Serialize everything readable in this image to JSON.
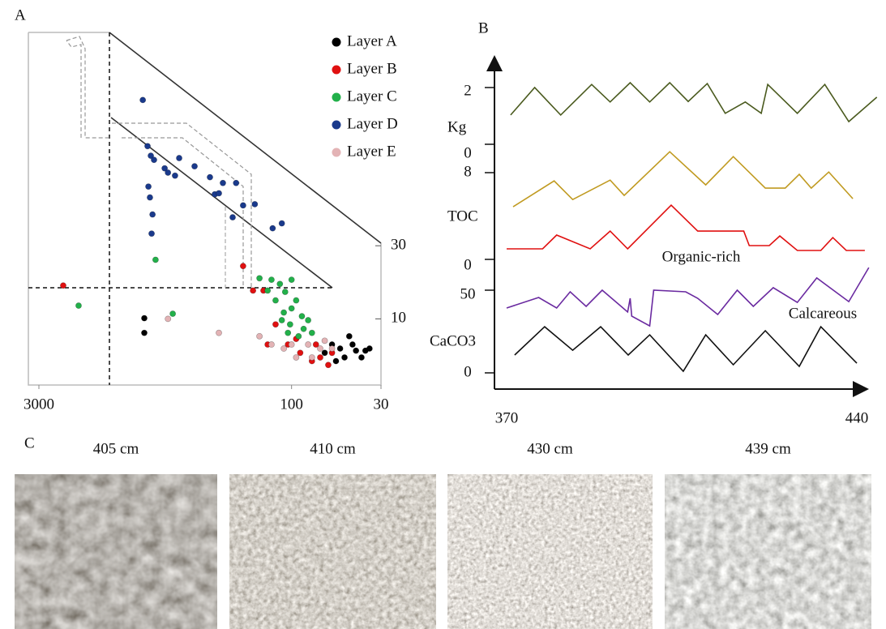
{
  "panel_labels": [
    "A",
    "B",
    "C"
  ],
  "chart_data": [
    {
      "type": "scatter",
      "xscale": "log",
      "yscale": "log",
      "xlim": [
        3000,
        30
      ],
      "ylim": [
        3.7,
        740
      ],
      "xticks": [
        3000,
        100,
        30
      ],
      "yticks": [
        10,
        30
      ],
      "legend": "upper right",
      "series": [
        {
          "name": "Layer A",
          "color": "#000000",
          "x": [
            726,
            726,
            58,
            52,
            46,
            42,
            37,
            49,
            39,
            55,
            44,
            64,
            35
          ],
          "y": [
            10.1,
            8.1,
            6.8,
            6.4,
            7.7,
            6.2,
            6.2,
            5.6,
            5.6,
            5.3,
            6.8,
            6.0,
            6.4
          ]
        },
        {
          "name": "Layer B",
          "color": "#e01010",
          "x": [
            2163,
            192,
            168,
            146,
            124,
            105,
            89,
            76,
            68,
            61,
            58,
            138,
            94,
            72
          ],
          "y": [
            16.5,
            22.1,
            15.3,
            15.3,
            9.2,
            6.8,
            6.0,
            5.3,
            5.6,
            5.0,
            6.0,
            6.8,
            7.4,
            6.8
          ]
        },
        {
          "name": "Layer C",
          "color": "#22b04a",
          "x": [
            154,
            131,
            117,
            100,
            109,
            94,
            124,
            111,
            100,
            87,
            102,
            85,
            76,
            91,
            114,
            80,
            138,
            105,
            624,
            1758,
            495
          ],
          "y": [
            18.4,
            18.0,
            16.9,
            18.0,
            15.0,
            13.2,
            13.2,
            11.0,
            11.7,
            10.4,
            9.2,
            8.6,
            8.1,
            7.7,
            9.8,
            9.8,
            15.3,
            8.1,
            24.3,
            12.2,
            10.8
          ]
        },
        {
          "name": "Layer D",
          "color": "#1a3a8c",
          "x": [
            741,
            695,
            665,
            637,
            552,
            528,
            480,
            454,
            687,
            673,
            650,
            658,
            300,
            281,
            266,
            252,
            211,
            192,
            221,
            164,
            129,
            114,
            369
          ],
          "y": [
            268,
            134,
            116,
            109,
            96,
            90,
            86,
            112,
            73,
            62,
            48,
            36,
            84,
            65,
            66,
            77,
            77,
            55,
            46,
            56,
            39,
            42,
            99
          ]
        },
        {
          "name": "Layer E",
          "color": "#e3b3b5",
          "x": [
            528,
            266,
            154,
            131,
            111,
            94,
            80,
            68,
            58,
            64,
            76,
            100
          ],
          "y": [
            10.0,
            8.1,
            7.7,
            6.8,
            6.4,
            5.6,
            6.8,
            6.4,
            6.4,
            7.2,
            5.6,
            6.8
          ]
        }
      ]
    },
    {
      "type": "line",
      "xlim": [
        370,
        440
      ],
      "xticks": [
        370,
        440
      ],
      "axes": [
        {
          "label": "Kg",
          "ylim": [
            0,
            2
          ],
          "yticks": [
            2,
            0
          ]
        },
        {
          "label": "TOC",
          "ylim": [
            0,
            8
          ],
          "yticks": [
            8,
            0
          ]
        },
        {
          "label": "CaCO3",
          "ylim": [
            0,
            50
          ],
          "yticks": [
            50,
            0
          ]
        }
      ],
      "annotations": [
        "Organic-rich",
        "Calcareous"
      ],
      "series": [
        {
          "color": "#4a5a1e",
          "axis": 0,
          "x": [
            370.8,
            375.6,
            380.8,
            387.0,
            390.7,
            394.7,
            398.6,
            402.6,
            406.3,
            410.1,
            413.7,
            417.7,
            420.9,
            422.2,
            428.1,
            433.6,
            438.4,
            444.0
          ],
          "values": [
            1.03,
            2.0,
            1.03,
            2.11,
            1.49,
            2.17,
            1.49,
            2.17,
            1.51,
            2.14,
            1.09,
            1.49,
            1.09,
            2.11,
            1.09,
            2.11,
            0.8,
            1.66
          ]
        },
        {
          "color": "#c09a20",
          "axis": 1,
          "x": [
            371.3,
            379.5,
            383.2,
            390.7,
            393.5,
            402.6,
            409.8,
            415.3,
            421.7,
            425.7,
            428.5,
            430.9,
            434.4,
            439.2
          ],
          "values": [
            4.85,
            7.24,
            5.52,
            7.31,
            5.9,
            9.93,
            6.87,
            9.48,
            6.57,
            6.57,
            7.84,
            6.57,
            8.06,
            5.6
          ]
        },
        {
          "color": "#e01010",
          "axis": 1,
          "x": [
            370,
            377.2,
            380.0,
            386.7,
            390.7,
            394.2,
            402.9,
            408.2,
            417.4,
            418.5,
            422.5,
            424.6,
            428.1,
            432.8,
            435.2,
            437.9,
            441.6
          ],
          "values": [
            0.97,
            0.97,
            2.24,
            0.97,
            2.61,
            0.97,
            5.0,
            2.61,
            2.61,
            1.27,
            1.27,
            2.16,
            0.82,
            0.82,
            2.01,
            0.82,
            0.82
          ]
        },
        {
          "color": "#6a2aa0",
          "axis": 2,
          "x": [
            370,
            376.4,
            380.0,
            382.7,
            385.9,
            389.1,
            394.2,
            394.7,
            395.0,
            398.6,
            399.4,
            405.8,
            408.2,
            412.2,
            416.1,
            419.3,
            423.3,
            428.1,
            432.0,
            438.4,
            442.4
          ],
          "values": [
            39.2,
            45.6,
            39.2,
            49.0,
            40.2,
            50.0,
            36.8,
            45.1,
            34.3,
            28.4,
            50.0,
            49.0,
            45.1,
            35.3,
            50.0,
            40.2,
            51.5,
            42.6,
            57.4,
            43.1,
            63.7
          ]
        },
        {
          "color": "#111111",
          "axis": 2,
          "x": [
            371.6,
            377.6,
            383.2,
            388.8,
            394.3,
            398.6,
            405.3,
            409.8,
            415.3,
            421.7,
            428.5,
            432.8,
            440
          ],
          "values": [
            10.8,
            27.9,
            13.7,
            27.9,
            10.8,
            23.0,
            1.0,
            23.0,
            4.9,
            25.5,
            3.9,
            27.9,
            5.9
          ]
        }
      ]
    }
  ],
  "photos": [
    {
      "caption": "405 cm"
    },
    {
      "caption": "410 cm"
    },
    {
      "caption": "430 cm"
    },
    {
      "caption": "439 cm"
    }
  ]
}
